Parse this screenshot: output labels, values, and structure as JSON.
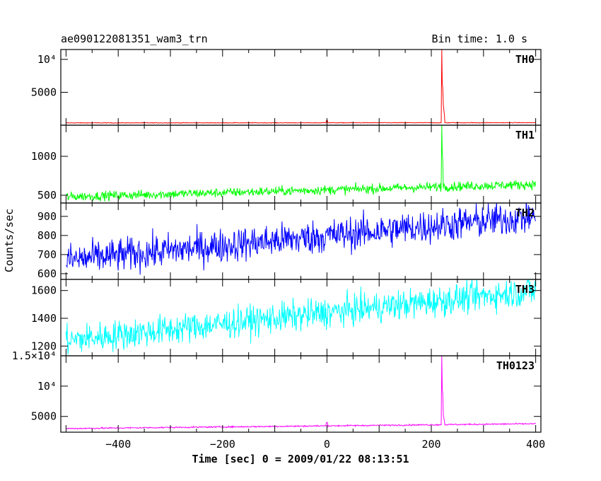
{
  "header": {
    "title": "ae090122081351_wam3_trn",
    "bin_time": "Bin time: 1.0 s"
  },
  "chart_data": {
    "type": "line",
    "xlabel": "Time [sec] 0 = 2009/01/22 08:13:51",
    "ylabel": "Counts/sec",
    "xlim": [
      -510,
      410
    ],
    "xticks": [
      -400,
      -200,
      0,
      200,
      400
    ],
    "xtick_labels": [
      "−400",
      "−200",
      "0",
      "200",
      "400"
    ],
    "panels": [
      {
        "name": "TH0",
        "color": "#ff0000",
        "ylim": [
          0,
          11500
        ],
        "yticks": [
          5000,
          10000
        ],
        "ytick_labels": [
          "5000",
          "10⁴"
        ],
        "baseline_start": 350,
        "baseline_end": 380,
        "noise": 25,
        "peak_time": 220,
        "peak_value": 11500,
        "peak_second": 6300,
        "decay_end": 900,
        "small_bump_time": 0,
        "small_bump_value": 700
      },
      {
        "name": "TH1",
        "color": "#00ff00",
        "ylim": [
          400,
          1400
        ],
        "yticks": [
          500,
          1000
        ],
        "ytick_labels": [
          "500",
          "1000"
        ],
        "baseline_start": 480,
        "baseline_end": 640,
        "noise": 30,
        "peak_time": 220,
        "peak_value": 1400,
        "peak_second": 1050,
        "decay_end": 640
      },
      {
        "name": "TH2",
        "color": "#0000ff",
        "ylim": [
          570,
          970
        ],
        "yticks": [
          600,
          700,
          800,
          900
        ],
        "ytick_labels": [
          "600",
          "700",
          "800",
          "900"
        ],
        "baseline_start": 670,
        "baseline_end": 900,
        "noise": 45
      },
      {
        "name": "TH3",
        "color": "#00ffff",
        "ylim": [
          1130,
          1680
        ],
        "yticks": [
          1200,
          1400,
          1600
        ],
        "ytick_labels": [
          "1200",
          "1400",
          "1600"
        ],
        "baseline_start": 1240,
        "baseline_end": 1600,
        "noise": 55
      },
      {
        "name": "TH0123",
        "color": "#ff00ff",
        "ylim": [
          2400,
          15000
        ],
        "yticks": [
          5000,
          10000,
          15000
        ],
        "ytick_labels": [
          "5000",
          "10⁴",
          "1.5×10⁴"
        ],
        "baseline_start": 3000,
        "baseline_end": 3800,
        "noise": 60,
        "peak_time": 220,
        "peak_value": 15000,
        "peak_second": 9600,
        "decay_end": 3800,
        "small_bump_time": 0,
        "small_bump_value": 4000
      }
    ]
  }
}
